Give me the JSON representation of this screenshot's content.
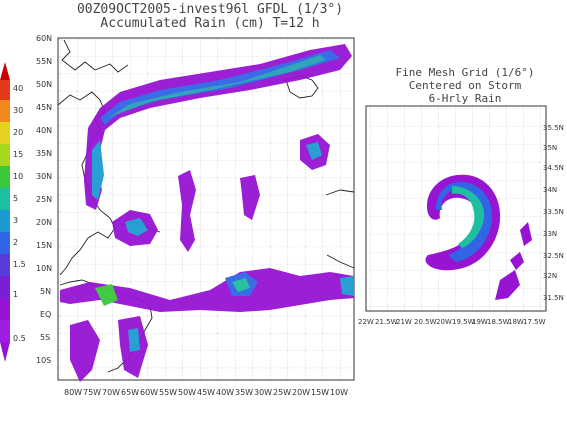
{
  "main_map": {
    "title_line1": "00Z09OCT2005-invest96l GFDL (1/3°)",
    "title_line2": "Accumulated Rain (cm) T=12 h",
    "lat_labels": [
      "60N",
      "55N",
      "50N",
      "45N",
      "40N",
      "35N",
      "30N",
      "25N",
      "20N",
      "15N",
      "10N",
      "5N",
      "EQ",
      "5S",
      "10S"
    ],
    "lon_labels": [
      "80W",
      "75W",
      "70W",
      "65W",
      "60W",
      "55W",
      "50W",
      "45W",
      "40W",
      "35W",
      "30W",
      "25W",
      "20W",
      "15W",
      "10W"
    ]
  },
  "inset_map": {
    "title_line1": "Fine Mesh Grid (1/6°)",
    "title_line2": "Centered on Storm",
    "title_line3": "6-Hrly Rain",
    "lat_labels": [
      "35.5N",
      "35N",
      "34.5N",
      "34N",
      "33.5N",
      "33N",
      "32.5N",
      "32N",
      "31.5N"
    ],
    "lon_labels": [
      "22W",
      "21.5W",
      "21W",
      "20.5W",
      "20W",
      "19.5W",
      "19W",
      "18.5W",
      "18W",
      "17.5W"
    ]
  },
  "colorbar": {
    "labels": [
      "40",
      "30",
      "20",
      "15",
      "10",
      "5",
      "3",
      "2",
      "1.5",
      "1",
      "0.5"
    ],
    "colors": [
      "#cc0000",
      "#e23a1a",
      "#f08a1e",
      "#e6d21e",
      "#a8d81e",
      "#3cc83c",
      "#1ebea0",
      "#1e9ad2",
      "#3264e6",
      "#6432d2",
      "#9614d2"
    ]
  }
}
